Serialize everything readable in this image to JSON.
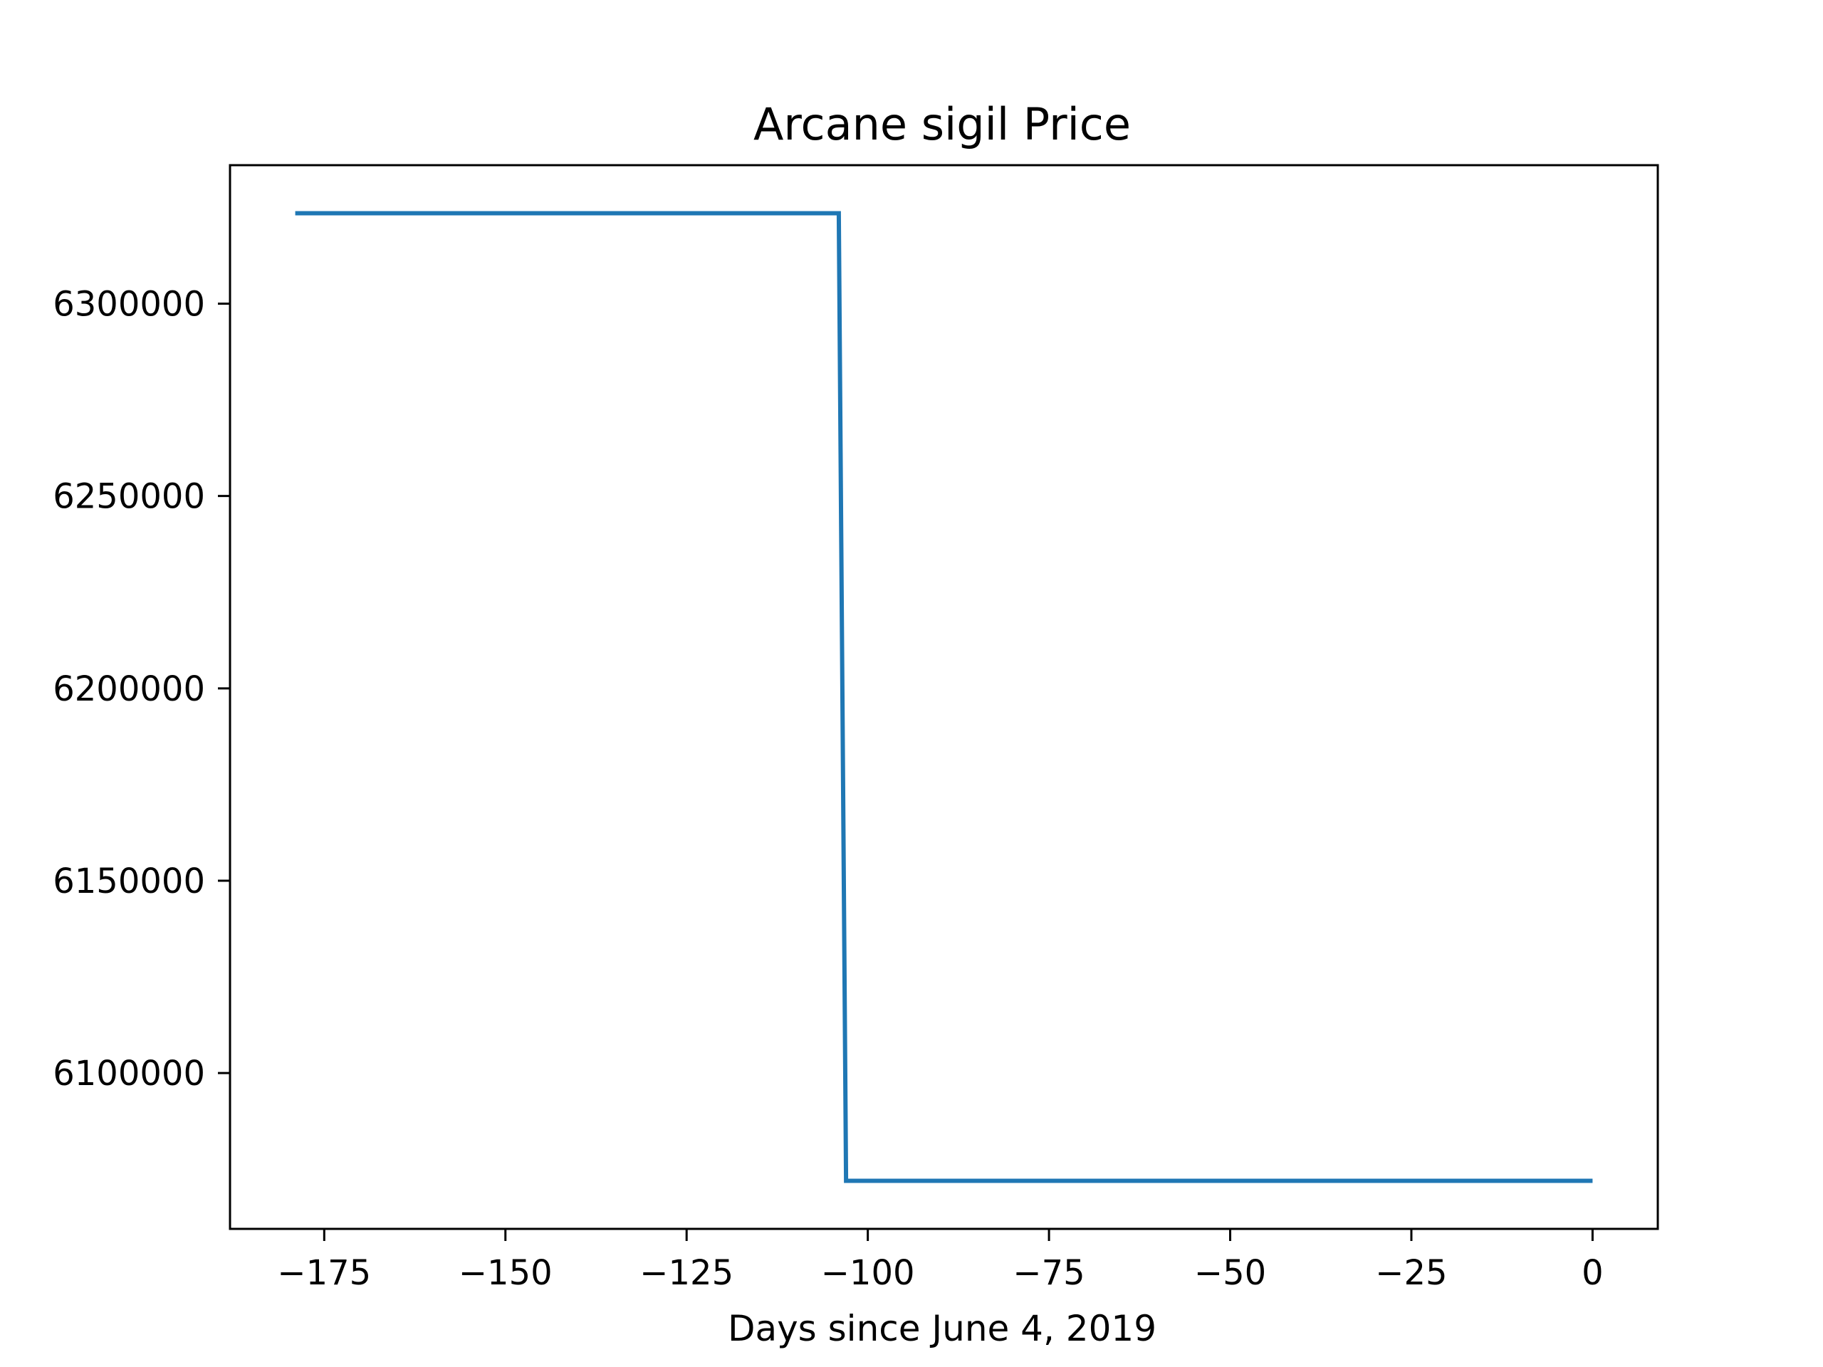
{
  "chart_data": {
    "type": "line",
    "title": "Arcane sigil Price",
    "xlabel": "Days since June 4, 2019",
    "ylabel": "",
    "xlim": [
      -188,
      9
    ],
    "ylim": [
      6059500,
      6336000
    ],
    "x_ticks": [
      -175,
      -150,
      -125,
      -100,
      -75,
      -50,
      -25,
      0
    ],
    "x_tick_labels": [
      "−175",
      "−150",
      "−125",
      "−100",
      "−75",
      "−50",
      "−25",
      "0"
    ],
    "y_ticks": [
      6100000,
      6150000,
      6200000,
      6250000,
      6300000
    ],
    "y_tick_labels": [
      "6100000",
      "6150000",
      "6200000",
      "6250000",
      "6300000"
    ],
    "grid": false,
    "legend": "none",
    "series": [
      {
        "color": "#1f77b4",
        "x": [
          -179,
          -104,
          -103,
          0
        ],
        "y": [
          6323500,
          6323500,
          6072000,
          6072000
        ]
      }
    ]
  }
}
